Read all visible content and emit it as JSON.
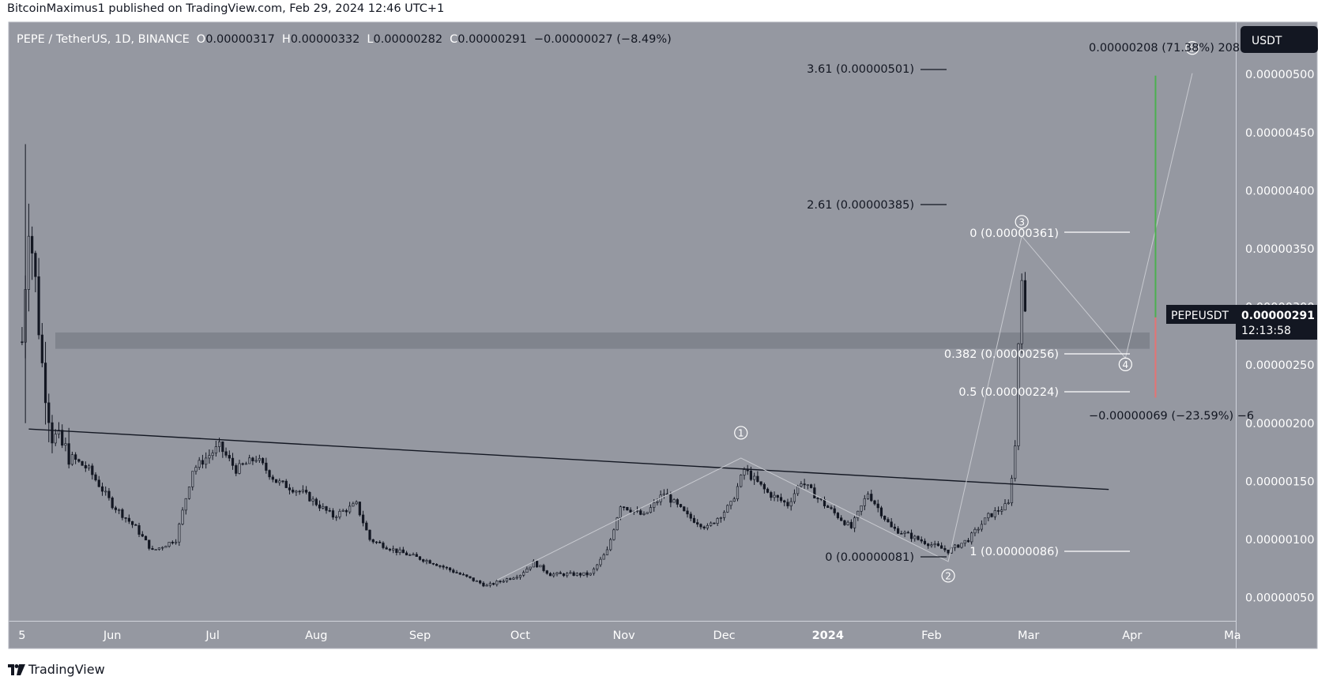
{
  "header": {
    "published_line": "BitcoinMaximus1 published on TradingView.com, Feb 29, 2024 12:46 UTC+1"
  },
  "legend": {
    "symbol": "PEPE / TetherUS, 1D, BINANCE",
    "open_label": "O",
    "open": "0.00000317",
    "high_label": "H",
    "high": "0.00000332",
    "low_label": "L",
    "low": "0.00000282",
    "close_label": "C",
    "close": "0.00000291",
    "change": "−0.00000027 (−8.49%)"
  },
  "price_scale": {
    "currency_button": "USDT",
    "ticks": [
      "0.00000500",
      "0.00000450",
      "0.00000400",
      "0.00000350",
      "0.00000300",
      "0.00000250",
      "0.00000200",
      "0.00000150",
      "0.00000100",
      "0.00000050"
    ],
    "last_price_symbol": "PEPEUSDT",
    "last_price": "0.00000291",
    "countdown": "12:13:58"
  },
  "time_scale": {
    "ticks": [
      "5",
      "Jun",
      "Jul",
      "Aug",
      "Sep",
      "Oct",
      "Nov",
      "Dec",
      "2024",
      "Feb",
      "Mar",
      "Apr",
      "Ma"
    ]
  },
  "drawings": {
    "fib_extension": [
      {
        "label": "3.61 (0.00000501)"
      },
      {
        "label": "2.61 (0.00000385)"
      },
      {
        "label": "0 (0.00000081)"
      }
    ],
    "fib_retracement": [
      {
        "label": "0 (0.00000361)"
      },
      {
        "label": "0.382 (0.00000256)"
      },
      {
        "label": "0.5 (0.00000224)"
      },
      {
        "label": "1 (0.00000086)"
      }
    ],
    "wave_labels": [
      "1",
      "2",
      "3",
      "4",
      "5"
    ],
    "long_position_target": "0.00000208 (71.38%) 208",
    "long_position_stop": "−0.00000069 (−23.59%) −6"
  },
  "footer": {
    "brand": "TradingView"
  },
  "colors": {
    "plot_bg": "#9598a1",
    "axis_bg": "#9598a1",
    "candle": "#131722",
    "resistance_zone": "#7d8089",
    "target_line": "#4caf50",
    "stop_line": "#e57373",
    "countdown_bg": "#131722"
  },
  "chart_data": {
    "type": "candlestick",
    "title": "PEPE / TetherUS, 1D, BINANCE",
    "y_unit": "USDT",
    "ylim": [
      3e-07,
      5.45e-06
    ],
    "x_range": [
      "2023-05-01",
      "2024-05-02"
    ],
    "grid": false,
    "price_path": [
      [
        "2023-05-05",
        2.7e-06
      ],
      [
        "2023-05-07",
        3.8e-06
      ],
      [
        "2023-05-09",
        3.2e-06
      ],
      [
        "2023-05-11",
        2.5e-06
      ],
      [
        "2023-05-14",
        1.9e-06
      ],
      [
        "2023-05-20",
        1.7e-06
      ],
      [
        "2023-05-25",
        1.6e-06
      ],
      [
        "2023-06-01",
        1.3e-06
      ],
      [
        "2023-06-08",
        1.1e-06
      ],
      [
        "2023-06-13",
        9e-07
      ],
      [
        "2023-06-20",
        1e-06
      ],
      [
        "2023-06-25",
        1.6e-06
      ],
      [
        "2023-07-03",
        1.8e-06
      ],
      [
        "2023-07-08",
        1.6e-06
      ],
      [
        "2023-07-14",
        1.7e-06
      ],
      [
        "2023-07-20",
        1.5e-06
      ],
      [
        "2023-07-28",
        1.4e-06
      ],
      [
        "2023-08-06",
        1.2e-06
      ],
      [
        "2023-08-13",
        1.3e-06
      ],
      [
        "2023-08-17",
        1e-06
      ],
      [
        "2023-08-25",
        9e-07
      ],
      [
        "2023-09-05",
        8e-07
      ],
      [
        "2023-09-13",
        7e-07
      ],
      [
        "2023-09-21",
        6e-07
      ],
      [
        "2023-10-01",
        7e-07
      ],
      [
        "2023-10-05",
        8e-07
      ],
      [
        "2023-10-10",
        7e-07
      ],
      [
        "2023-10-17",
        7e-07
      ],
      [
        "2023-10-22",
        7e-07
      ],
      [
        "2023-10-27",
        9e-07
      ],
      [
        "2023-10-31",
        1.3e-06
      ],
      [
        "2023-11-07",
        1.2e-06
      ],
      [
        "2023-11-13",
        1.4e-06
      ],
      [
        "2023-11-20",
        1.2e-06
      ],
      [
        "2023-11-26",
        1.1e-06
      ],
      [
        "2023-12-03",
        1.3e-06
      ],
      [
        "2023-12-07",
        1.6e-06
      ],
      [
        "2023-12-14",
        1.4e-06
      ],
      [
        "2023-12-20",
        1.3e-06
      ],
      [
        "2023-12-24",
        1.5e-06
      ],
      [
        "2023-12-31",
        1.3e-06
      ],
      [
        "2024-01-08",
        1.1e-06
      ],
      [
        "2024-01-13",
        1.4e-06
      ],
      [
        "2024-01-20",
        1.1e-06
      ],
      [
        "2024-01-28",
        1e-06
      ],
      [
        "2024-02-06",
        9e-07
      ],
      [
        "2024-02-12",
        1e-06
      ],
      [
        "2024-02-18",
        1.2e-06
      ],
      [
        "2024-02-24",
        1.3e-06
      ],
      [
        "2024-02-26",
        1.8e-06
      ],
      [
        "2024-02-27",
        2.7e-06
      ],
      [
        "2024-02-28",
        3.3e-06
      ],
      [
        "2024-02-29",
        2.91e-06
      ]
    ],
    "horizontal_zone": [
      2.64e-06,
      2.78e-06
    ],
    "descending_trendline": [
      [
        "2023-05-07",
        1.95e-06
      ],
      [
        "2024-03-25",
        1.43e-06
      ]
    ],
    "fib_extension_levels": [
      {
        "ratio": 3.61,
        "value": 5.01e-06
      },
      {
        "ratio": 2.61,
        "value": 3.85e-06
      },
      {
        "ratio": 0,
        "value": 8.1e-07
      }
    ],
    "fib_retracement_levels": [
      {
        "ratio": 0,
        "value": 3.61e-06
      },
      {
        "ratio": 0.382,
        "value": 2.56e-06
      },
      {
        "ratio": 0.5,
        "value": 2.24e-06
      },
      {
        "ratio": 1,
        "value": 8.6e-07
      }
    ],
    "wave_count": [
      {
        "label": "1",
        "date": "2023-12-06",
        "value": 1.7e-06
      },
      {
        "label": "2",
        "date": "2024-02-06",
        "value": 8.1e-07
      },
      {
        "label": "3",
        "date": "2024-02-28",
        "value": 3.61e-06
      },
      {
        "label": "4",
        "date": "2024-03-30",
        "value": 2.56e-06
      },
      {
        "label": "5",
        "date": "2024-04-19",
        "value": 5.01e-06
      }
    ],
    "position_tool": {
      "entry": 2.91e-06,
      "target": 4.99e-06,
      "stop": 2.22e-06
    }
  }
}
